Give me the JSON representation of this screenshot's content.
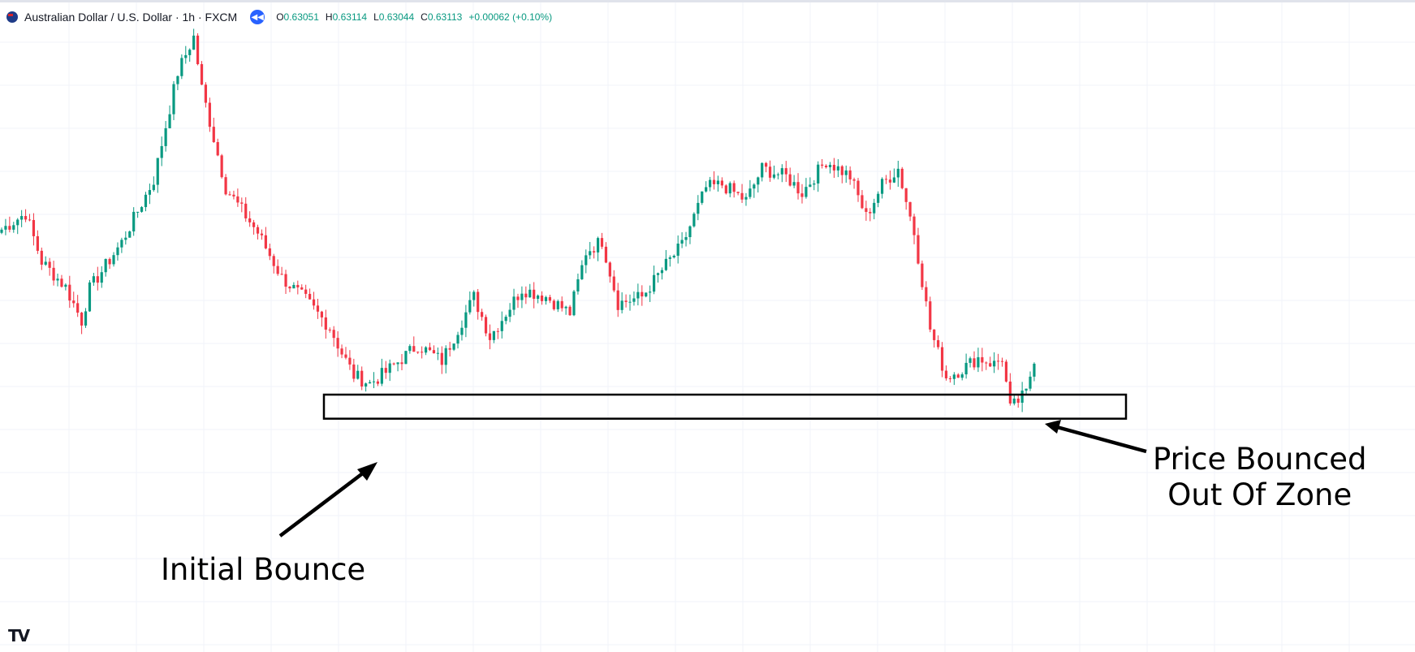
{
  "legend": {
    "symbol": "Australian Dollar / U.S. Dollar · 1h · FXCM",
    "open_label": "O",
    "open": "0.63051",
    "high_label": "H",
    "high": "0.63114",
    "low_label": "L",
    "low": "0.63044",
    "close_label": "C",
    "close": "0.63113",
    "change": "+0.00062 (+0.10%)"
  },
  "annotations": {
    "initial_bounce": "Initial Bounce",
    "price_bounced_line1": "Price Bounced",
    "price_bounced_line2": "Out Of Zone"
  },
  "logo": "TV",
  "colors": {
    "up": "#089981",
    "down": "#f23645",
    "grid": "#f0f3fa"
  },
  "chart_data": {
    "type": "candlestick",
    "symbol": "AUDUSD",
    "timeframe": "1h",
    "price_range": [
      0.613,
      0.6525
    ],
    "anchors": [
      {
        "i": 0,
        "p": 0.6392
      },
      {
        "i": 6,
        "p": 0.6402
      },
      {
        "i": 10,
        "p": 0.6372
      },
      {
        "i": 16,
        "p": 0.6356
      },
      {
        "i": 20,
        "p": 0.6335
      },
      {
        "i": 22,
        "p": 0.6355
      },
      {
        "i": 30,
        "p": 0.6384
      },
      {
        "i": 38,
        "p": 0.6423
      },
      {
        "i": 44,
        "p": 0.649
      },
      {
        "i": 48,
        "p": 0.6512
      },
      {
        "i": 50,
        "p": 0.648
      },
      {
        "i": 56,
        "p": 0.6418
      },
      {
        "i": 64,
        "p": 0.639
      },
      {
        "i": 70,
        "p": 0.6362
      },
      {
        "i": 76,
        "p": 0.6348
      },
      {
        "i": 82,
        "p": 0.6331
      },
      {
        "i": 85,
        "p": 0.6315
      },
      {
        "i": 88,
        "p": 0.6301
      },
      {
        "i": 92,
        "p": 0.6296
      },
      {
        "i": 96,
        "p": 0.6303
      },
      {
        "i": 104,
        "p": 0.632
      },
      {
        "i": 110,
        "p": 0.631
      },
      {
        "i": 118,
        "p": 0.635
      },
      {
        "i": 122,
        "p": 0.6325
      },
      {
        "i": 130,
        "p": 0.6355
      },
      {
        "i": 136,
        "p": 0.635
      },
      {
        "i": 142,
        "p": 0.634
      },
      {
        "i": 146,
        "p": 0.6378
      },
      {
        "i": 150,
        "p": 0.6385
      },
      {
        "i": 154,
        "p": 0.6346
      },
      {
        "i": 160,
        "p": 0.635
      },
      {
        "i": 166,
        "p": 0.637
      },
      {
        "i": 170,
        "p": 0.6382
      },
      {
        "i": 176,
        "p": 0.6418
      },
      {
        "i": 180,
        "p": 0.642
      },
      {
        "i": 186,
        "p": 0.641
      },
      {
        "i": 190,
        "p": 0.643
      },
      {
        "i": 196,
        "p": 0.6425
      },
      {
        "i": 200,
        "p": 0.6415
      },
      {
        "i": 206,
        "p": 0.6435
      },
      {
        "i": 212,
        "p": 0.6425
      },
      {
        "i": 216,
        "p": 0.64
      },
      {
        "i": 220,
        "p": 0.642
      },
      {
        "i": 224,
        "p": 0.643
      },
      {
        "i": 228,
        "p": 0.639
      },
      {
        "i": 232,
        "p": 0.633
      },
      {
        "i": 236,
        "p": 0.63
      },
      {
        "i": 240,
        "p": 0.6305
      },
      {
        "i": 244,
        "p": 0.6312
      },
      {
        "i": 248,
        "p": 0.6308
      },
      {
        "i": 250,
        "p": 0.6312
      },
      {
        "i": 252,
        "p": 0.628
      },
      {
        "i": 256,
        "p": 0.629
      },
      {
        "i": 258,
        "p": 0.6312
      }
    ],
    "candle_count": 259,
    "support_zone": {
      "low": 0.6274,
      "high": 0.6289
    }
  }
}
